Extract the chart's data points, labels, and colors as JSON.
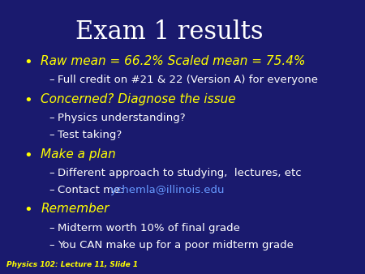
{
  "title": "Exam 1 results",
  "background_color": "#1a1a6e",
  "title_color": "#ffffff",
  "bullet_color": "#ffff00",
  "bullet_text_color": "#ffff00",
  "sub_text_color": "#ffffff",
  "link_color": "#6699ff",
  "footer_color": "#ffff00",
  "footer_text": "Physics 102: Lecture 11, Slide 1",
  "bullets": [
    {
      "text": "Raw mean = 66.2% Scaled mean = 75.4%",
      "subs": [
        {
          "text": "Full credit on #21 & 22 (Version A) for everyone",
          "link": false
        }
      ]
    },
    {
      "text": "Concerned? Diagnose the issue",
      "subs": [
        {
          "text": "Physics understanding?",
          "link": false
        },
        {
          "text": "Test taking?",
          "link": false
        }
      ]
    },
    {
      "text": "Make a plan",
      "subs": [
        {
          "text": "Different approach to studying,  lectures, etc",
          "link": false
        },
        {
          "text": "Contact me: ",
          "link": true,
          "link_text": "ychemla@illinois.edu"
        }
      ]
    },
    {
      "text": "Remember",
      "subs": [
        {
          "text": "Midterm worth 10% of final grade",
          "link": false
        },
        {
          "text": "You CAN make up for a poor midterm grade",
          "link": false
        }
      ]
    }
  ],
  "title_fontsize": 22,
  "bullet_fontsize": 11,
  "sub_fontsize": 9.5,
  "footer_fontsize": 6.5
}
